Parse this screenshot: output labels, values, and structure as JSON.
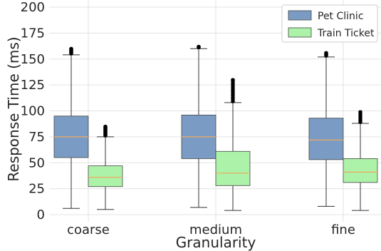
{
  "chart_data": {
    "type": "box",
    "xlabel": "Granularity",
    "ylabel": "Response Time (ms)",
    "ylim": [
      -3,
      200
    ],
    "yticks": [
      0,
      25,
      50,
      75,
      100,
      125,
      150,
      175,
      200
    ],
    "grid": true,
    "legend_position": "top-right",
    "categories": [
      "coarse",
      "medium",
      "fine"
    ],
    "series": [
      {
        "name": "Pet Clinic",
        "color": "#7a9cc4",
        "stats": [
          {
            "whislo": 6,
            "q1": 55,
            "med": 75,
            "q3": 95,
            "whishi": 154,
            "fliers": [
              155,
              156,
              157,
              158,
              159,
              160
            ]
          },
          {
            "whislo": 7,
            "q1": 54,
            "med": 75,
            "q3": 96,
            "whishi": 160,
            "fliers": [
              161,
              162
            ]
          },
          {
            "whislo": 8,
            "q1": 53,
            "med": 72,
            "q3": 93,
            "whishi": 152,
            "fliers": [
              153,
              154,
              155,
              156
            ]
          }
        ]
      },
      {
        "name": "Train Ticket",
        "color": "#adf2a9",
        "stats": [
          {
            "whislo": 5,
            "q1": 27,
            "med": 36,
            "q3": 47,
            "whishi": 75,
            "fliers": [
              76,
              77,
              78,
              79,
              80,
              81,
              82,
              83,
              84,
              85
            ]
          },
          {
            "whislo": 4,
            "q1": 28,
            "med": 40,
            "q3": 61,
            "whishi": 108,
            "fliers": [
              109,
              111,
              113,
              115,
              117,
              119,
              121,
              123,
              125,
              127,
              129,
              130
            ]
          },
          {
            "whislo": 4,
            "q1": 31,
            "med": 41,
            "q3": 54,
            "whishi": 88,
            "fliers": [
              89,
              91,
              93,
              95,
              97,
              99
            ]
          }
        ]
      }
    ]
  }
}
